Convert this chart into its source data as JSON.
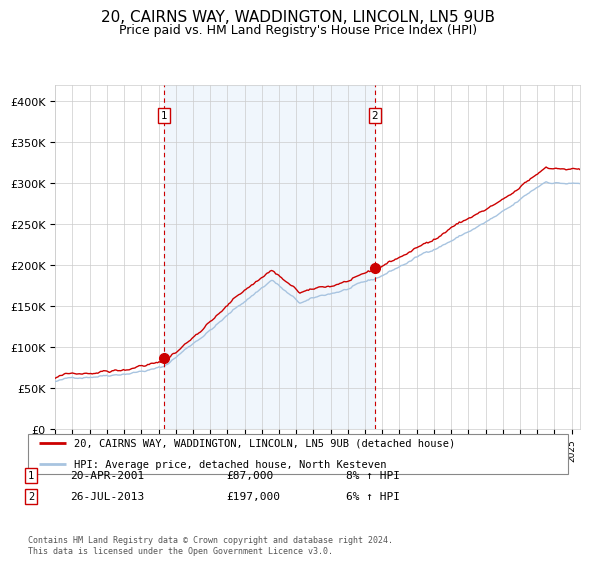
{
  "title": "20, CAIRNS WAY, WADDINGTON, LINCOLN, LN5 9UB",
  "subtitle": "Price paid vs. HM Land Registry's House Price Index (HPI)",
  "title_fontsize": 11,
  "subtitle_fontsize": 9,
  "xlim_start": 1995.0,
  "xlim_end": 2025.5,
  "ylim_min": 0,
  "ylim_max": 420000,
  "yticks": [
    0,
    50000,
    100000,
    150000,
    200000,
    250000,
    300000,
    350000,
    400000
  ],
  "ytick_labels": [
    "£0",
    "£50K",
    "£100K",
    "£150K",
    "£200K",
    "£250K",
    "£300K",
    "£350K",
    "£400K"
  ],
  "bg_color": "#d6e8f7",
  "plot_bg": "#ffffff",
  "grid_color": "#cccccc",
  "line_color_hpi": "#a8c4e0",
  "line_color_property": "#cc0000",
  "sale1_x": 2001.3,
  "sale1_y": 87000,
  "sale2_x": 2013.57,
  "sale2_y": 197000,
  "sale1_label": "1",
  "sale2_label": "2",
  "sale1_date": "20-APR-2001",
  "sale1_price": "£87,000",
  "sale1_hpi": "8% ↑ HPI",
  "sale2_date": "26-JUL-2013",
  "sale2_price": "£197,000",
  "sale2_hpi": "6% ↑ HPI",
  "legend_label1": "20, CAIRNS WAY, WADDINGTON, LINCOLN, LN5 9UB (detached house)",
  "legend_label2": "HPI: Average price, detached house, North Kesteven",
  "footer_text": "Contains HM Land Registry data © Crown copyright and database right 2024.\nThis data is licensed under the Open Government Licence v3.0.",
  "shaded_start": 2001.3,
  "shaded_end": 2013.57
}
